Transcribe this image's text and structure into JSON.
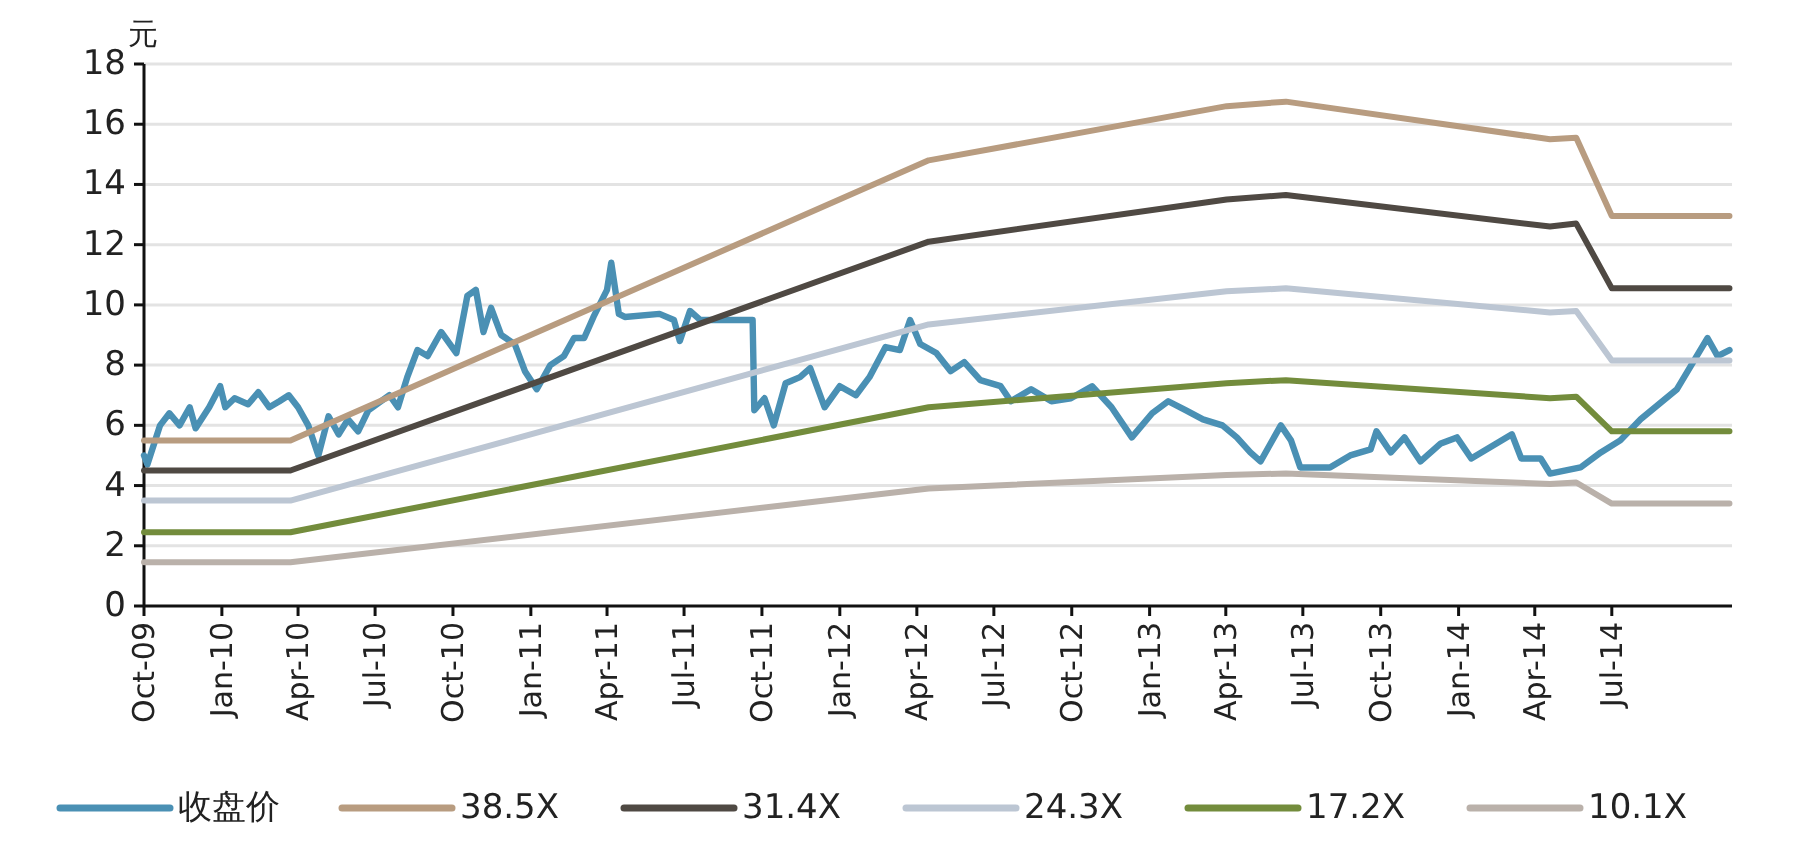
{
  "chart_data": {
    "type": "line",
    "ylabel": "元",
    "xlim": [
      "2009-10-01",
      "2014-11-20"
    ],
    "xticks": [
      {
        "value": "2009-10-01",
        "label": "Oct-09"
      },
      {
        "value": "2010-01-01",
        "label": "Jan-10"
      },
      {
        "value": "2010-04-01",
        "label": "Apr-10"
      },
      {
        "value": "2010-07-01",
        "label": "Jul-10"
      },
      {
        "value": "2010-10-01",
        "label": "Oct-10"
      },
      {
        "value": "2011-01-01",
        "label": "Jan-11"
      },
      {
        "value": "2011-04-01",
        "label": "Apr-11"
      },
      {
        "value": "2011-07-01",
        "label": "Jul-11"
      },
      {
        "value": "2011-10-01",
        "label": "Oct-11"
      },
      {
        "value": "2012-01-01",
        "label": "Jan-12"
      },
      {
        "value": "2012-04-01",
        "label": "Apr-12"
      },
      {
        "value": "2012-07-01",
        "label": "Jul-12"
      },
      {
        "value": "2012-10-01",
        "label": "Oct-12"
      },
      {
        "value": "2013-01-01",
        "label": "Jan-13"
      },
      {
        "value": "2013-04-01",
        "label": "Apr-13"
      },
      {
        "value": "2013-07-01",
        "label": "Jul-13"
      },
      {
        "value": "2013-10-01",
        "label": "Oct-13"
      },
      {
        "value": "2014-01-01",
        "label": "Jan-14"
      },
      {
        "value": "2014-04-01",
        "label": "Apr-14"
      },
      {
        "value": "2014-07-01",
        "label": "Jul-14"
      }
    ],
    "ylim": [
      0,
      18
    ],
    "yticks": [
      0,
      2,
      4,
      6,
      8,
      10,
      12,
      14,
      16,
      18
    ],
    "grid": "y",
    "legend": "bottom",
    "series": [
      {
        "name": "收盘价",
        "color": "#4a90b4",
        "x": [
          "2009-10-01",
          "2009-10-05",
          "2009-10-20",
          "2009-10-31",
          "2009-11-12",
          "2009-11-24",
          "2009-12-01",
          "2009-12-17",
          "2009-12-30",
          "2010-01-05",
          "2010-01-16",
          "2010-02-01",
          "2010-02-13",
          "2010-02-26",
          "2010-03-10",
          "2010-03-21",
          "2010-04-01",
          "2010-04-13",
          "2010-04-25",
          "2010-05-07",
          "2010-05-19",
          "2010-05-30",
          "2010-06-11",
          "2010-06-23",
          "2010-07-18",
          "2010-07-28",
          "2010-08-08",
          "2010-08-20",
          "2010-09-01",
          "2010-09-17",
          "2010-10-05",
          "2010-10-18",
          "2010-10-28",
          "2010-11-06",
          "2010-11-15",
          "2010-11-27",
          "2010-12-13",
          "2010-12-25",
          "2011-01-08",
          "2011-01-24",
          "2011-02-09",
          "2011-02-21",
          "2011-03-05",
          "2011-03-16",
          "2011-04-01",
          "2011-04-06",
          "2011-04-15",
          "2011-04-22",
          "2011-06-02",
          "2011-06-19",
          "2011-06-26",
          "2011-07-08",
          "2011-07-20",
          "2011-09-20",
          "2011-09-22",
          "2011-10-04",
          "2011-10-15",
          "2011-10-29",
          "2011-11-15",
          "2011-11-27",
          "2011-12-14",
          "2012-01-01",
          "2012-01-20",
          "2012-02-05",
          "2012-02-24",
          "2012-03-12",
          "2012-03-24",
          "2012-04-05",
          "2012-04-24",
          "2012-05-11",
          "2012-05-27",
          "2012-06-15",
          "2012-07-09",
          "2012-07-21",
          "2012-08-14",
          "2012-09-07",
          "2012-09-30",
          "2012-10-25",
          "2012-11-17",
          "2012-12-11",
          "2013-01-04",
          "2013-01-23",
          "2013-02-13",
          "2013-03-05",
          "2013-03-28",
          "2013-04-14",
          "2013-04-30",
          "2013-05-12",
          "2013-06-05",
          "2013-06-17",
          "2013-06-28",
          "2013-08-02",
          "2013-08-26",
          "2013-09-19",
          "2013-09-26",
          "2013-10-13",
          "2013-10-29",
          "2013-11-17",
          "2013-12-11",
          "2013-12-30",
          "2014-01-16",
          "2014-03-05",
          "2014-03-16",
          "2014-04-08",
          "2014-04-19",
          "2014-05-25",
          "2014-06-18",
          "2014-07-11",
          "2014-08-04",
          "2014-09-16",
          "2014-10-22",
          "2014-11-03",
          "2014-11-17"
        ],
        "values": [
          5.0,
          4.7,
          6.0,
          6.4,
          6.0,
          6.6,
          5.9,
          6.6,
          7.3,
          6.6,
          6.9,
          6.7,
          7.1,
          6.6,
          6.8,
          7.0,
          6.6,
          6.0,
          5.0,
          6.3,
          5.7,
          6.2,
          5.8,
          6.5,
          7.0,
          6.6,
          7.6,
          8.5,
          8.3,
          9.1,
          8.4,
          10.3,
          10.5,
          9.1,
          9.9,
          9.0,
          8.7,
          7.8,
          7.2,
          8.0,
          8.3,
          8.9,
          8.9,
          9.6,
          10.5,
          11.4,
          9.7,
          9.6,
          9.7,
          9.5,
          8.8,
          9.8,
          9.5,
          9.5,
          6.5,
          6.9,
          6.0,
          7.4,
          7.6,
          7.9,
          6.6,
          7.3,
          7.0,
          7.6,
          8.6,
          8.5,
          9.5,
          8.7,
          8.4,
          7.8,
          8.1,
          7.5,
          7.3,
          6.8,
          7.2,
          6.8,
          6.9,
          7.3,
          6.6,
          5.6,
          6.4,
          6.8,
          6.5,
          6.2,
          6.0,
          5.6,
          5.1,
          4.8,
          6.0,
          5.5,
          4.6,
          4.6,
          5.0,
          5.2,
          5.8,
          5.1,
          5.6,
          4.8,
          5.4,
          5.6,
          4.9,
          5.7,
          4.9,
          4.9,
          4.4,
          4.6,
          5.1,
          5.5,
          6.2,
          7.2,
          8.9,
          8.3,
          8.5
        ]
      },
      {
        "name": "38.5X",
        "color": "#b89c80",
        "x": [
          "2009-10-01",
          "2010-03-23",
          "2012-04-15",
          "2013-04-02",
          "2013-06-11",
          "2014-04-19",
          "2014-05-20",
          "2014-07-01",
          "2014-11-17"
        ],
        "values": [
          5.5,
          5.5,
          14.8,
          16.6,
          16.75,
          15.5,
          15.55,
          12.95,
          12.95
        ]
      },
      {
        "name": "31.4X",
        "color": "#4f4943",
        "x": [
          "2009-10-01",
          "2010-03-23",
          "2012-04-15",
          "2013-04-02",
          "2013-06-11",
          "2014-04-19",
          "2014-05-20",
          "2014-07-01",
          "2014-11-17"
        ],
        "values": [
          4.5,
          4.5,
          12.1,
          13.5,
          13.65,
          12.6,
          12.7,
          10.55,
          10.55
        ]
      },
      {
        "name": "24.3X",
        "color": "#bcc6d3",
        "x": [
          "2009-10-01",
          "2010-03-23",
          "2012-04-15",
          "2013-04-02",
          "2013-06-11",
          "2014-04-19",
          "2014-05-20",
          "2014-07-01",
          "2014-11-17"
        ],
        "values": [
          3.5,
          3.5,
          9.35,
          10.45,
          10.55,
          9.75,
          9.8,
          8.15,
          8.15
        ]
      },
      {
        "name": "17.2X",
        "color": "#738c3c",
        "x": [
          "2009-10-01",
          "2010-03-23",
          "2012-04-15",
          "2013-04-02",
          "2013-06-11",
          "2014-04-19",
          "2014-05-20",
          "2014-07-01",
          "2014-11-17"
        ],
        "values": [
          2.45,
          2.45,
          6.6,
          7.4,
          7.5,
          6.9,
          6.95,
          5.8,
          5.8
        ]
      },
      {
        "name": "10.1X",
        "color": "#bab1aa",
        "x": [
          "2009-10-01",
          "2010-03-23",
          "2012-04-15",
          "2013-04-02",
          "2013-06-11",
          "2014-04-19",
          "2014-05-20",
          "2014-07-01",
          "2014-11-17"
        ],
        "values": [
          1.45,
          1.45,
          3.9,
          4.35,
          4.4,
          4.05,
          4.1,
          3.4,
          3.4
        ]
      }
    ]
  }
}
